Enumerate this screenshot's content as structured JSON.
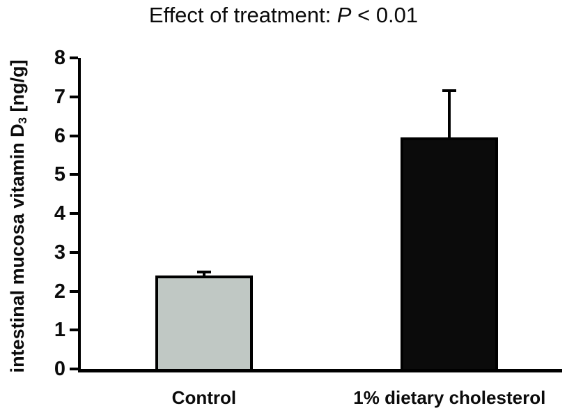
{
  "title": {
    "text_before_p": "Effect of treatment: ",
    "p_symbol": "P",
    "text_after_p": " < 0.01"
  },
  "y_axis": {
    "label_text": "intestinal mucosa vitamin D",
    "label_subscript": "3",
    "label_suffix": " [ng/g]"
  },
  "chart_data": {
    "type": "bar",
    "title": "Effect of treatment: P < 0.01",
    "categories": [
      "Control",
      "1% dietary cholesterol"
    ],
    "values": [
      2.4,
      5.95
    ],
    "errors_upper": [
      0.1,
      1.2
    ],
    "bar_colors": [
      "#c0c8c4",
      "#0b0b0b"
    ],
    "bar_border_color": "#000000",
    "xlabel": "",
    "ylabel": "intestinal mucosa vitamin D3 [ng/g]",
    "ylim": [
      0,
      8
    ],
    "yticks": [
      0,
      1,
      2,
      3,
      4,
      5,
      6,
      7,
      8
    ],
    "grid": false,
    "legend": "none"
  }
}
